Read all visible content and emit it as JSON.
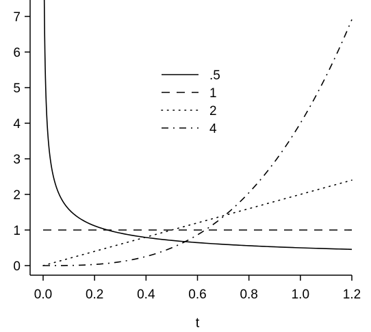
{
  "chart_data": {
    "type": "line",
    "title": "",
    "xlabel": "t",
    "ylabel": "",
    "xlim": [
      0,
      1.2
    ],
    "ylim": [
      0,
      7
    ],
    "xticks": [
      "0.0",
      "0.2",
      "0.4",
      "0.6",
      "0.8",
      "1.0",
      "1.2"
    ],
    "yticks": [
      "0",
      "1",
      "2",
      "3",
      "4",
      "5",
      "6",
      "7"
    ],
    "grid": false,
    "legend_position": "upper-center",
    "series": [
      {
        "name": ".5",
        "line_style": "solid",
        "formula": "0.5 * t^(-0.5)",
        "x": [
          0.003,
          0.005,
          0.01,
          0.015,
          0.02,
          0.03,
          0.05,
          0.08,
          0.1,
          0.15,
          0.2,
          0.3,
          0.4,
          0.5,
          0.6,
          0.7,
          0.8,
          0.9,
          1.0,
          1.1,
          1.2
        ],
        "values": [
          9.13,
          7.07,
          5.0,
          4.08,
          3.54,
          2.89,
          2.24,
          1.77,
          1.58,
          1.29,
          1.12,
          0.91,
          0.79,
          0.71,
          0.65,
          0.6,
          0.56,
          0.53,
          0.5,
          0.48,
          0.46
        ]
      },
      {
        "name": "1",
        "line_style": "dashed",
        "formula": "1",
        "x": [
          0.0,
          1.2
        ],
        "values": [
          1,
          1
        ]
      },
      {
        "name": "2",
        "line_style": "dotted",
        "formula": "2 * t",
        "x": [
          0.0,
          0.2,
          0.4,
          0.6,
          0.8,
          1.0,
          1.2
        ],
        "values": [
          0.0,
          0.4,
          0.8,
          1.2,
          1.6,
          2.0,
          2.4
        ]
      },
      {
        "name": "4",
        "line_style": "dash-dot",
        "formula": "4 * t^3",
        "x": [
          0.0,
          0.1,
          0.2,
          0.3,
          0.4,
          0.5,
          0.6,
          0.7,
          0.8,
          0.9,
          1.0,
          1.1,
          1.2
        ],
        "values": [
          0.0,
          0.004,
          0.032,
          0.108,
          0.256,
          0.5,
          0.864,
          1.372,
          2.048,
          2.916,
          4.0,
          5.324,
          6.912
        ]
      }
    ]
  },
  "colors": {
    "line": "#000000",
    "background": "#ffffff"
  }
}
